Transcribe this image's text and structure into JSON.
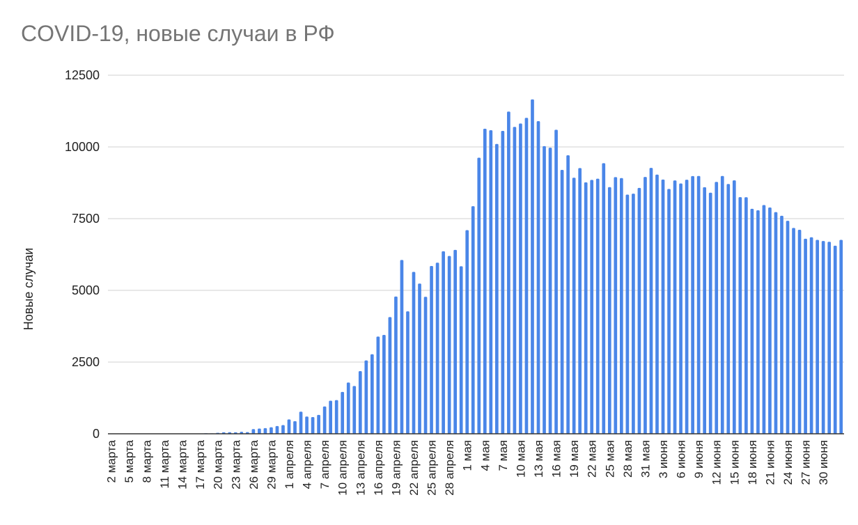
{
  "chart_data": {
    "type": "bar",
    "title": "COVID-19, новые случаи в РФ",
    "ylabel": "Новые случаи",
    "xlabel": "",
    "ylim": [
      0,
      12500
    ],
    "yticks": [
      0,
      2500,
      5000,
      7500,
      10000,
      12500
    ],
    "grid": true,
    "legend": "none",
    "color": "#4a86e8",
    "start_date": "2020-03-02",
    "tick_labels": [
      "2 марта",
      "5 марта",
      "8 марта",
      "11 марта",
      "14 марта",
      "17 марта",
      "20 марта",
      "23 марта",
      "26 марта",
      "29 марта",
      "1 апреля",
      "4 апреля",
      "7 апреля",
      "10 апреля",
      "13 апреля",
      "16 апреля",
      "19 апреля",
      "22 апреля",
      "25 апреля",
      "28 апреля",
      "1 мая",
      "4 мая",
      "7 мая",
      "10 мая",
      "13 мая",
      "16 мая",
      "19 мая",
      "22 мая",
      "25 мая",
      "28 мая",
      "31 мая",
      "3 июня",
      "6 июня",
      "9 июня",
      "12 июня",
      "15 июня",
      "18 июня",
      "21 июня",
      "24 июня",
      "27 июня",
      "30 июня"
    ],
    "values": [
      0,
      0,
      0,
      0,
      0,
      0,
      0,
      0,
      0,
      0,
      0,
      0,
      0,
      0,
      0,
      0,
      17,
      14,
      33,
      52,
      54,
      53,
      71,
      57,
      163,
      182,
      196,
      228,
      270,
      302,
      501,
      440,
      771,
      601,
      582,
      658,
      954,
      1154,
      1175,
      1459,
      1786,
      1667,
      2186,
      2558,
      2774,
      3388,
      3448,
      4070,
      4785,
      6060,
      4268,
      5642,
      5236,
      4774,
      5849,
      5966,
      6361,
      6198,
      6411,
      5841,
      7099,
      7933,
      9623,
      10633,
      10581,
      10102,
      10559,
      11231,
      10699,
      10817,
      11012,
      11656,
      10899,
      10028,
      9974,
      10598,
      9200,
      9709,
      8926,
      9263,
      8764,
      8849,
      8894,
      9434,
      8599,
      8946,
      8915,
      8338,
      8371,
      8572,
      8952,
      9268,
      9035,
      8863,
      8536,
      8831,
      8726,
      8855,
      8985,
      8987,
      8595,
      8404,
      8779,
      8987,
      8706,
      8835,
      8248,
      8246,
      7843,
      7790,
      7972,
      7889,
      7728,
      7600,
      7425,
      7176,
      7113,
      6800,
      6852,
      6760,
      6719,
      6693,
      6556,
      6760
    ]
  }
}
